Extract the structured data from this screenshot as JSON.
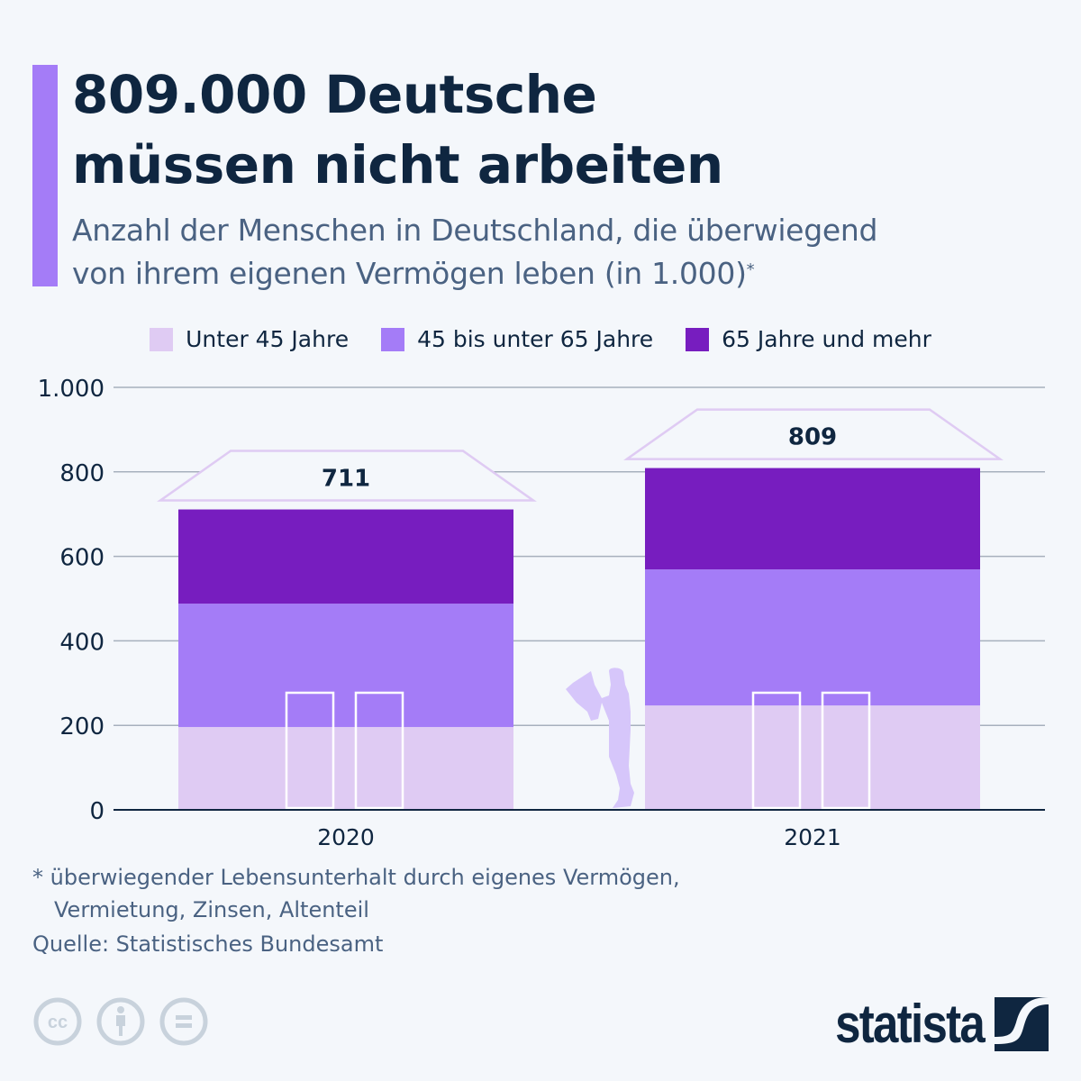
{
  "header": {
    "title_line1": "809.000 Deutsche",
    "title_line2": "müssen nicht arbeiten",
    "subtitle_line1": "Anzahl der Menschen in Deutschland, die überwiegend",
    "subtitle_line2": "von ihrem eigenen Vermögen leben (in 1.000)",
    "subtitle_marker": "*",
    "accent_color": "#a47cf7"
  },
  "legend": [
    {
      "label": "Unter 45 Jahre",
      "color": "#dfcbf3"
    },
    {
      "label": "45 bis unter 65 Jahre",
      "color": "#a47cf7"
    },
    {
      "label": "65 Jahre und mehr",
      "color": "#771dbf"
    }
  ],
  "chart_data": {
    "type": "bar",
    "stacked": true,
    "title": "Anzahl der Menschen in Deutschland, die überwiegend von ihrem eigenen Vermögen leben (in 1.000)",
    "xlabel": "",
    "ylabel": "",
    "categories": [
      "2020",
      "2021"
    ],
    "series": [
      {
        "name": "Unter 45 Jahre",
        "values": [
          196,
          247
        ],
        "color": "#dfcbf3"
      },
      {
        "name": "45 bis unter 65 Jahre",
        "values": [
          292,
          322
        ],
        "color": "#a47cf7"
      },
      {
        "name": "65 Jahre und mehr",
        "values": [
          223,
          240
        ],
        "color": "#771dbf"
      }
    ],
    "totals": [
      711,
      809
    ],
    "total_labels": [
      "711",
      "809"
    ],
    "ylim": [
      0,
      1000
    ],
    "yticks": [
      0,
      200,
      400,
      600,
      800,
      1000
    ],
    "ytick_labels": [
      "0",
      "200",
      "400",
      "600",
      "800",
      "1.000"
    ],
    "grid": true,
    "legend_position": "top-center"
  },
  "footer": {
    "footnote_line1": "* überwiegender Lebensunterhalt durch eigenes Vermögen,",
    "footnote_line2": "Vermietung, Zinsen, Altenteil",
    "source": "Quelle: Statistisches Bundesamt",
    "license_icons": [
      "cc-icon",
      "attribution-icon",
      "no-derivatives-icon"
    ],
    "brand": "statista"
  }
}
